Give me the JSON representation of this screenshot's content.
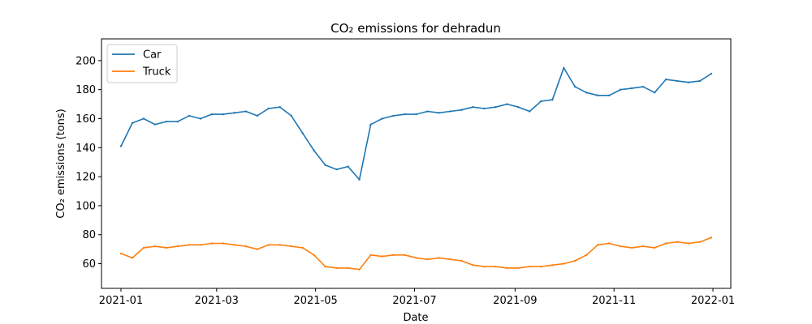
{
  "chart_data": {
    "type": "line",
    "title": "CO₂ emissions for dehradun",
    "xlabel": "Date",
    "ylabel": "CO₂ emissions (tons)",
    "xlim": [
      "2020-12-20",
      "2022-01-12"
    ],
    "ylim": [
      43,
      215
    ],
    "x_ticks": [
      "2021-01",
      "2021-03",
      "2021-05",
      "2021-07",
      "2021-09",
      "2021-11",
      "2022-01"
    ],
    "y_ticks": [
      60,
      80,
      100,
      120,
      140,
      160,
      180,
      200
    ],
    "grid": false,
    "legend": "upper-left",
    "x": [
      "2021-01-01",
      "2021-01-08",
      "2021-01-15",
      "2021-01-22",
      "2021-01-29",
      "2021-02-05",
      "2021-02-12",
      "2021-02-19",
      "2021-02-26",
      "2021-03-05",
      "2021-03-12",
      "2021-03-19",
      "2021-03-26",
      "2021-04-02",
      "2021-04-09",
      "2021-04-16",
      "2021-04-23",
      "2021-04-30",
      "2021-05-07",
      "2021-05-14",
      "2021-05-21",
      "2021-05-28",
      "2021-06-04",
      "2021-06-11",
      "2021-06-18",
      "2021-06-25",
      "2021-07-02",
      "2021-07-09",
      "2021-07-16",
      "2021-07-23",
      "2021-07-30",
      "2021-08-06",
      "2021-08-13",
      "2021-08-20",
      "2021-08-27",
      "2021-09-03",
      "2021-09-10",
      "2021-09-17",
      "2021-09-24",
      "2021-10-01",
      "2021-10-08",
      "2021-10-15",
      "2021-10-22",
      "2021-10-29",
      "2021-11-05",
      "2021-11-12",
      "2021-11-19",
      "2021-11-26",
      "2021-12-03",
      "2021-12-10",
      "2021-12-17",
      "2021-12-24",
      "2021-12-31"
    ],
    "series": [
      {
        "name": "Car",
        "color": "#1f77b4",
        "values": [
          141,
          157,
          160,
          156,
          158,
          158,
          162,
          160,
          163,
          163,
          164,
          165,
          162,
          167,
          168,
          162,
          150,
          138,
          128,
          125,
          127,
          118,
          156,
          160,
          162,
          163,
          163,
          165,
          164,
          165,
          166,
          168,
          167,
          168,
          170,
          168,
          165,
          172,
          173,
          195,
          182,
          178,
          176,
          176,
          180,
          181,
          182,
          178,
          187,
          186,
          185,
          186,
          191
        ]
      },
      {
        "name": "Truck",
        "color": "#ff7f0e",
        "values": [
          67,
          64,
          71,
          72,
          71,
          72,
          73,
          73,
          74,
          74,
          73,
          72,
          70,
          73,
          73,
          72,
          71,
          66,
          58,
          57,
          57,
          56,
          66,
          65,
          66,
          66,
          64,
          63,
          64,
          63,
          62,
          59,
          58,
          58,
          57,
          57,
          58,
          58,
          59,
          60,
          62,
          66,
          73,
          74,
          72,
          71,
          72,
          71,
          74,
          75,
          74,
          75,
          78
        ]
      }
    ]
  }
}
